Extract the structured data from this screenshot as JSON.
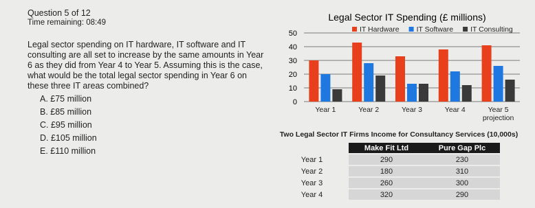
{
  "header": {
    "question_number": "Question 5 of 12",
    "timer": "Time remaining: 08:49"
  },
  "question": "Legal sector spending on IT hardware, IT software and IT consulting are all set to increase by the same amounts in Year 6 as they did from Year 4 to Year 5. Assuming this is the case, what would be the total legal sector spending in Year 6 on these three IT areas combined?",
  "options": [
    "A. £75 million",
    "B. £85 million",
    "C. £95 million",
    "D. £105 million",
    "E. £110 million"
  ],
  "chart_data": {
    "type": "bar",
    "title": "Legal Sector IT Spending (£ millions)",
    "categories": [
      "Year 1",
      "Year 2",
      "Year 3",
      "Year 4",
      "Year 5 projection"
    ],
    "series": [
      {
        "name": "IT Hardware",
        "color": "#e8401c",
        "values": [
          30,
          43,
          33,
          38,
          41
        ]
      },
      {
        "name": "IT Software",
        "color": "#1f77e0",
        "values": [
          20,
          28,
          13,
          22,
          26
        ]
      },
      {
        "name": "IT Consulting",
        "color": "#3a3a3a",
        "values": [
          9,
          19,
          13,
          12,
          16
        ]
      }
    ],
    "ylim": [
      0,
      50
    ],
    "yticks": [
      0,
      10,
      20,
      30,
      40,
      50
    ],
    "grid": true,
    "legend": "top"
  },
  "table": {
    "title": "Two Legal Sector IT Firms Income for Consultancy Services (10,000s)",
    "columns": [
      "Make Fit Ltd",
      "Pure Gap Plc"
    ],
    "rows": [
      [
        "Year 1",
        "290",
        "230"
      ],
      [
        "Year 2",
        "180",
        "310"
      ],
      [
        "Year 3",
        "260",
        "300"
      ],
      [
        "Year 4",
        "320",
        "290"
      ]
    ]
  }
}
